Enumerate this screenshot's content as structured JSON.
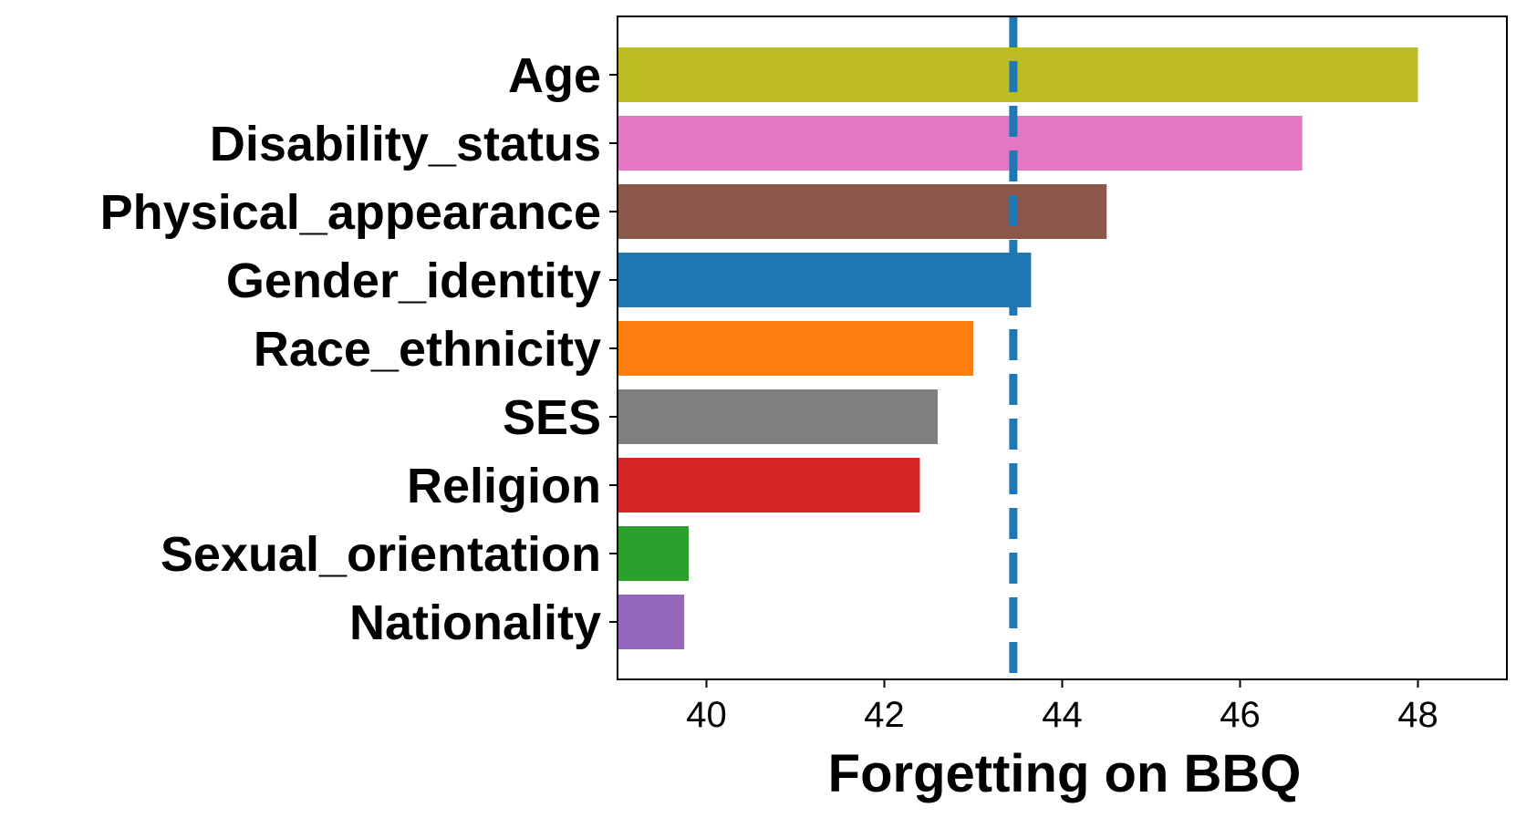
{
  "chart_data": {
    "type": "bar",
    "orientation": "horizontal",
    "title": "",
    "xlabel": "Forgetting on BBQ",
    "ylabel": "",
    "xlim": [
      39,
      49
    ],
    "xticks": [
      40,
      42,
      44,
      46,
      48
    ],
    "grid": false,
    "legend": "none",
    "categories": [
      "Age",
      "Disability_status",
      "Physical_appearance",
      "Gender_identity",
      "Race_ethnicity",
      "SES",
      "Religion",
      "Sexual_orientation",
      "Nationality"
    ],
    "values": [
      48.0,
      46.7,
      44.5,
      43.65,
      43.0,
      42.6,
      42.4,
      39.8,
      39.75
    ],
    "colors": [
      "#bcbd22",
      "#e377c2",
      "#8c564b",
      "#1f77b4",
      "#ff7f0e",
      "#7f7f7f",
      "#d62728",
      "#2ca02c",
      "#9467bd"
    ],
    "reference_line": {
      "value": 43.45,
      "style": "dashed",
      "color": "#1f77b4"
    }
  }
}
